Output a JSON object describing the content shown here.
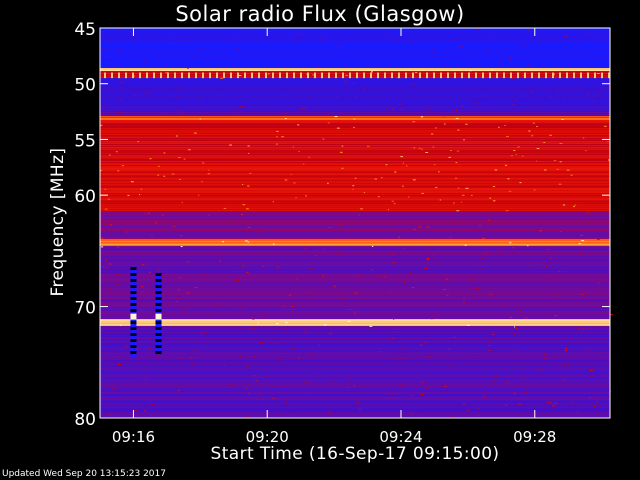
{
  "footer": "Updated Wed Sep 20 13:15:23 2017",
  "chart_data": {
    "type": "heatmap",
    "title": "Solar radio Flux (Glasgow)",
    "xlabel": "Start Time (16-Sep-17 09:15:00)",
    "ylabel": "Frequency [MHz]",
    "x_start": "09:15:00",
    "x_end": "09:30:15",
    "x_ticks": [
      "09:16",
      "09:20",
      "09:24",
      "09:28"
    ],
    "ylim": [
      45,
      80
    ],
    "y_ticks": [
      45,
      50,
      55,
      60,
      70,
      80
    ],
    "colormap": [
      "#1a1aff",
      "#3b0fd0",
      "#7a0a90",
      "#c00010",
      "#ff2000",
      "#ffa030",
      "#fff8d0"
    ],
    "bands": [
      {
        "from": 45.0,
        "to": 46.2,
        "level": 0.05
      },
      {
        "from": 46.2,
        "to": 48.6,
        "level": 0.0
      },
      {
        "from": 48.6,
        "to": 48.9,
        "level": 0.95
      },
      {
        "from": 48.9,
        "to": 49.5,
        "level": 0.55
      },
      {
        "from": 49.5,
        "to": 52.0,
        "level": 0.12
      },
      {
        "from": 52.0,
        "to": 52.9,
        "level": 0.22
      },
      {
        "from": 52.9,
        "to": 53.3,
        "level": 0.72
      },
      {
        "from": 53.3,
        "to": 61.5,
        "level": 0.55
      },
      {
        "from": 61.5,
        "to": 64.0,
        "level": 0.33
      },
      {
        "from": 64.0,
        "to": 64.6,
        "level": 0.78
      },
      {
        "from": 64.6,
        "to": 71.2,
        "level": 0.28
      },
      {
        "from": 71.2,
        "to": 71.8,
        "level": 0.92
      },
      {
        "from": 71.8,
        "to": 80.0,
        "level": 0.24
      }
    ],
    "bursts": [
      {
        "time": "09:16:00",
        "from": 66.5,
        "to": 74.5,
        "peak": 70.9
      },
      {
        "time": "09:16:45",
        "from": 67.0,
        "to": 74.0,
        "peak": 70.9
      }
    ]
  }
}
